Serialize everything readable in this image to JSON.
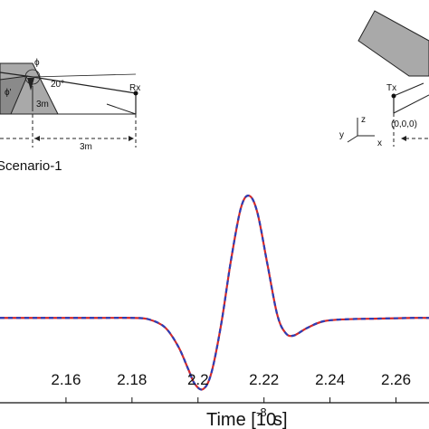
{
  "chart_data": {
    "type": "line",
    "xlabel": "Time [10",
    "xlabel_exponent": "-8",
    "xlabel_unit": " s]",
    "xlim": [
      2.14,
      2.27
    ],
    "ylim": [
      -1.25,
      2.35
    ],
    "x_ticks": [
      "2.16",
      "2.18",
      "2.2",
      "2.22",
      "2.24",
      "2.26"
    ],
    "x_tick_values": [
      2.16,
      2.18,
      2.2,
      2.22,
      2.24,
      2.26
    ],
    "grid": false,
    "series": [
      {
        "color": "#d42a2a",
        "style": "solid",
        "x": [
          2.14,
          2.15,
          2.16,
          2.17,
          2.18,
          2.185,
          2.19,
          2.194,
          2.197,
          2.199,
          2.2015,
          2.204,
          2.207,
          2.21,
          2.213,
          2.2155,
          2.218,
          2.221,
          2.224,
          2.2265,
          2.229,
          2.233,
          2.238,
          2.245,
          2.255,
          2.265,
          2.27
        ],
        "y": [
          0,
          0,
          0,
          0,
          0,
          -0.02,
          -0.14,
          -0.42,
          -0.75,
          -0.97,
          -1.05,
          -0.82,
          -0.1,
          0.85,
          1.62,
          1.8,
          1.55,
          0.8,
          0.05,
          -0.22,
          -0.26,
          -0.15,
          -0.05,
          -0.02,
          -0.01,
          0,
          0
        ]
      },
      {
        "color": "#2b3fb8",
        "style": "dashed",
        "x": [
          2.14,
          2.15,
          2.16,
          2.17,
          2.18,
          2.185,
          2.19,
          2.194,
          2.197,
          2.199,
          2.2015,
          2.204,
          2.207,
          2.21,
          2.213,
          2.2155,
          2.218,
          2.221,
          2.224,
          2.2265,
          2.229,
          2.233,
          2.238,
          2.245,
          2.255,
          2.265,
          2.27
        ],
        "y": [
          0,
          0,
          0,
          0,
          0,
          -0.02,
          -0.14,
          -0.42,
          -0.75,
          -0.97,
          -1.05,
          -0.82,
          -0.1,
          0.85,
          1.62,
          1.8,
          1.55,
          0.8,
          0.05,
          -0.22,
          -0.26,
          -0.15,
          -0.05,
          -0.02,
          -0.01,
          0,
          0
        ]
      }
    ]
  },
  "inset_left": {
    "scenario_label": "Scenario-1",
    "phi_label": "ϕ",
    "phi_prime_label": "ϕ'",
    "angle_label": "20°",
    "height_label": "3m",
    "distance_label": "3m",
    "rx_label": "Rx"
  },
  "inset_right": {
    "tx_label": "Tx",
    "origin_label": "(0,0,0)",
    "axis_z": "z",
    "axis_y": "y",
    "axis_x": "x"
  },
  "colors": {
    "wedge_fill": "#a9a9a9",
    "trace_red": "#d42a2a",
    "trace_blue": "#2b3fb8"
  }
}
